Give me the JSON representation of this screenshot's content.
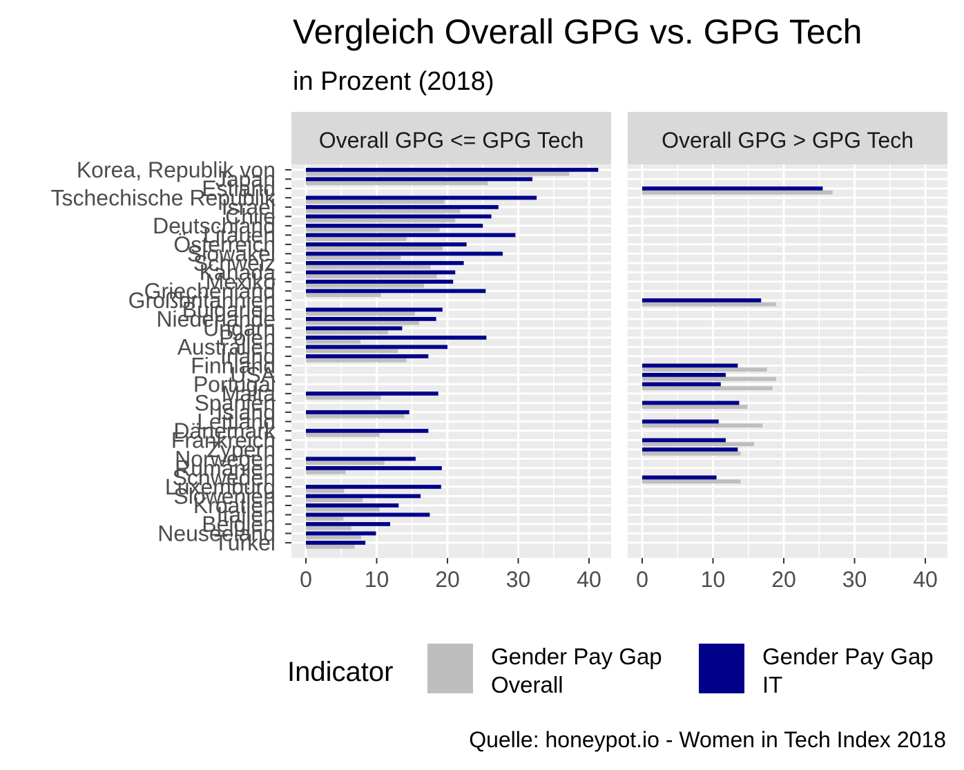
{
  "chart_data": {
    "type": "bar",
    "title": "Vergleich Overall GPG vs. GPG Tech",
    "subtitle": "in Prozent (2018)",
    "caption": "Quelle: honeypot.io - Women in Tech Index 2018",
    "xlim": [
      0,
      43
    ],
    "xticks": [
      0,
      10,
      20,
      30,
      40
    ],
    "grid": true,
    "legend_position": "bottom",
    "legend": {
      "title": "Indicator",
      "entries": [
        {
          "key": "overall",
          "line1": "Gender Pay Gap",
          "line2": "Overall",
          "color": "#bebebe"
        },
        {
          "key": "it",
          "line1": "Gender Pay Gap",
          "line2": "IT",
          "color": "#00008b"
        }
      ]
    },
    "colors": {
      "overall": "#bebebe",
      "it": "#00008b",
      "panel_bg": "#ebebeb",
      "strip_bg": "#d9d9d9",
      "grid": "#ffffff"
    },
    "facets": [
      {
        "label": "Overall GPG <= GPG Tech"
      },
      {
        "label": "Overall GPG > GPG Tech"
      }
    ],
    "categories": [
      "Korea, Republik von",
      "Japan",
      "Estland",
      "Tschechische Republik",
      "Israel",
      "Chile",
      "Deutschland",
      "Litauen",
      "Österreich",
      "Slowakei",
      "Schweiz",
      "Kanada",
      "Mexiko",
      "Griechenland",
      "Großbritannien",
      "Bulgarien",
      "Niederlande",
      "Ungarn",
      "Polen",
      "Australien",
      "Irland",
      "Finnland",
      "USA",
      "Portugal",
      "Malta",
      "Spanien",
      "Island",
      "Lettland",
      "Dänemark",
      "Frankreich",
      "Zypern",
      "Norwegen",
      "Rumänien",
      "Schweden",
      "Luxemburg",
      "Slowenien",
      "Kroatien",
      "Italien",
      "Belgien",
      "Neuseeland",
      "Türkei"
    ],
    "series": [
      {
        "name": "Gender Pay Gap Overall",
        "key": "overall",
        "values": [
          37.2,
          25.7,
          26.9,
          19.6,
          21.8,
          21.1,
          18.9,
          14.2,
          19.3,
          13.4,
          17.6,
          18.5,
          16.7,
          10.6,
          18.9,
          15.4,
          16.0,
          11.6,
          7.7,
          13.0,
          14.2,
          17.6,
          18.9,
          18.4,
          10.6,
          14.9,
          13.9,
          17.0,
          10.4,
          15.8,
          13.9,
          11.1,
          5.6,
          13.9,
          5.4,
          8.0,
          10.4,
          5.3,
          6.4,
          7.8,
          6.9
        ]
      },
      {
        "name": "Gender Pay Gap IT",
        "key": "it",
        "values": [
          41.3,
          32.0,
          25.5,
          32.6,
          27.2,
          26.2,
          25.0,
          29.6,
          22.7,
          27.8,
          22.3,
          21.1,
          20.8,
          25.4,
          16.8,
          19.3,
          18.4,
          13.6,
          25.5,
          20.0,
          17.3,
          13.5,
          11.8,
          11.1,
          18.7,
          13.7,
          14.6,
          10.8,
          17.3,
          11.8,
          13.5,
          15.5,
          19.2,
          10.5,
          19.1,
          16.2,
          13.1,
          17.5,
          11.9,
          9.9,
          8.4
        ]
      }
    ],
    "facet_assignment": [
      0,
      0,
      1,
      0,
      0,
      0,
      0,
      0,
      0,
      0,
      0,
      0,
      0,
      0,
      1,
      0,
      0,
      0,
      0,
      0,
      0,
      1,
      1,
      1,
      0,
      1,
      0,
      1,
      0,
      1,
      1,
      0,
      0,
      1,
      0,
      0,
      0,
      0,
      0,
      0,
      0
    ]
  }
}
